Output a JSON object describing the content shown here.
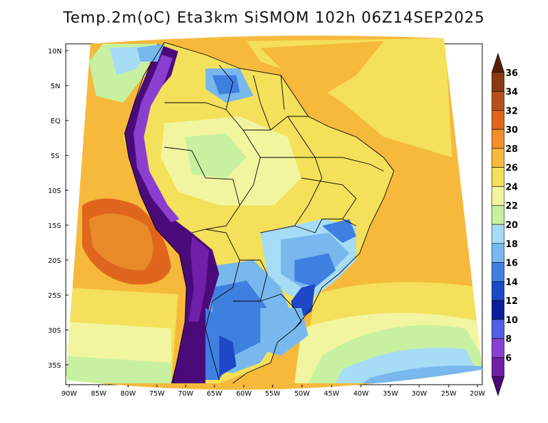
{
  "title": "Temp.2m(oC) Eta3km SiSMOM 102h 06Z14SEP2025",
  "map": {
    "lat_ticks": [
      "10N",
      "5N",
      "EQ",
      "5S",
      "10S",
      "15S",
      "20S",
      "25S",
      "30S",
      "35S"
    ],
    "lon_ticks": [
      "90W",
      "85W",
      "80W",
      "75W",
      "70W",
      "65W",
      "60W",
      "55W",
      "50W",
      "45W",
      "40W",
      "35W",
      "30W",
      "25W",
      "20W"
    ]
  },
  "colorbar": {
    "labels": [
      "36",
      "34",
      "32",
      "30",
      "28",
      "26",
      "24",
      "22",
      "20",
      "18",
      "16",
      "14",
      "12",
      "10",
      "8",
      "6"
    ],
    "colors": [
      "#5a1f0a",
      "#8b3a12",
      "#b8501a",
      "#e0661e",
      "#f2902a",
      "#f6b93b",
      "#f4e05a",
      "#f2f5a0",
      "#c7f1a0",
      "#a6dcf5",
      "#78b8ee",
      "#3f7fe0",
      "#1f48c8",
      "#0a1e9c",
      "#4f5fe6",
      "#8a3fd0",
      "#6f1fa8",
      "#4b0a7a"
    ]
  }
}
